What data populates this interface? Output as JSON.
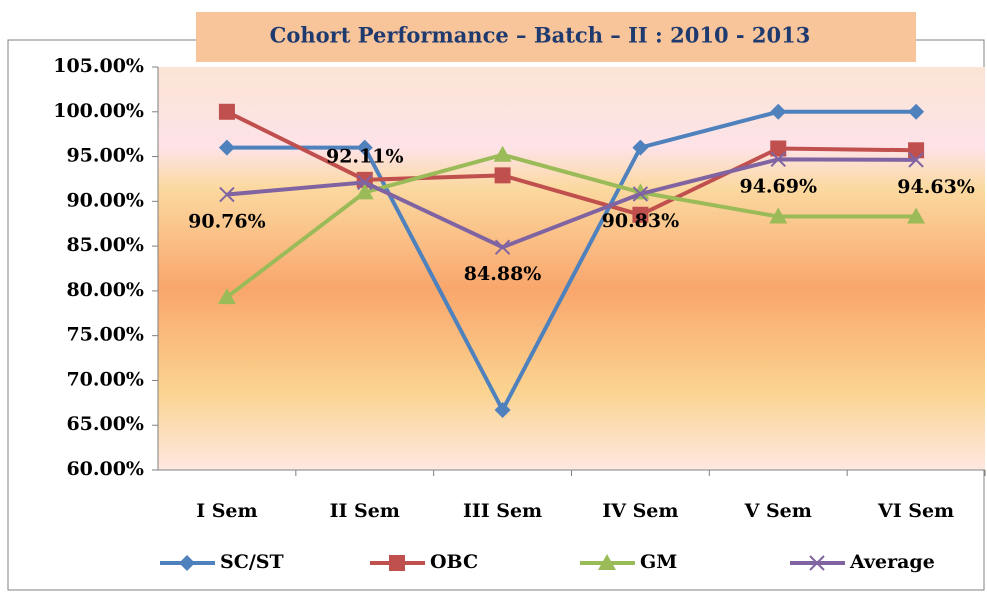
{
  "chart_data": {
    "type": "line",
    "title": "Cohort Performance – Batch – II  :  2010 - 2013",
    "categories": [
      "I Sem",
      "II Sem",
      "III Sem",
      "IV Sem",
      "V Sem",
      "VI Sem"
    ],
    "series": [
      {
        "name": "SC/ST",
        "color": "#4f81bd",
        "marker": "diamond",
        "values": [
          96,
          96,
          66.7,
          96,
          100,
          100
        ]
      },
      {
        "name": "OBC",
        "color": "#c0504d",
        "marker": "square",
        "values": [
          100,
          92.4,
          92.9,
          88.5,
          95.9,
          95.7
        ]
      },
      {
        "name": "GM",
        "color": "#9bbb59",
        "marker": "triangle",
        "values": [
          79.3,
          91,
          95.2,
          91,
          88.3,
          88.3
        ]
      },
      {
        "name": "Average",
        "color": "#8064a2",
        "marker": "x",
        "values": [
          90.76,
          92.11,
          84.88,
          90.83,
          94.69,
          94.63
        ],
        "value_labels": [
          "90.76%",
          "92.11%",
          "84.88%",
          "90.83%",
          "94.69%",
          "94.63%"
        ]
      }
    ],
    "ylim": [
      60,
      105
    ],
    "yticks": [
      {
        "value": 60,
        "label": "60.00%"
      },
      {
        "value": 65,
        "label": "65.00%"
      },
      {
        "value": 70,
        "label": "70.00%"
      },
      {
        "value": 75,
        "label": "75.00%"
      },
      {
        "value": 80,
        "label": "80.00%"
      },
      {
        "value": 85,
        "label": "85.00%"
      },
      {
        "value": 90,
        "label": "90.00%"
      },
      {
        "value": 95,
        "label": "95.00%"
      },
      {
        "value": 100,
        "label": "100.00%"
      },
      {
        "value": 105,
        "label": "105.00%"
      }
    ],
    "legend": "bottom"
  }
}
